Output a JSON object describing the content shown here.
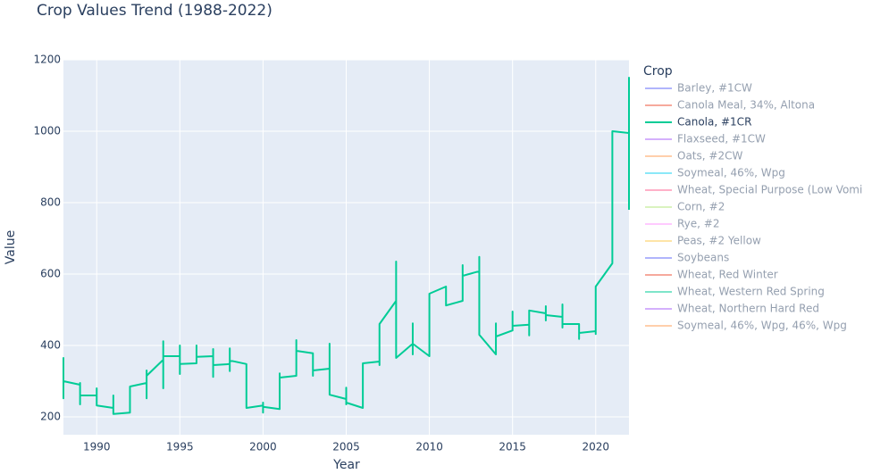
{
  "chart_data": {
    "type": "line",
    "title": "Crop Values Trend (1988-2022)",
    "x_label": "Year",
    "y_label": "Value",
    "legend_title": "Crop",
    "x": [
      1988,
      1988,
      1988,
      1989,
      1989,
      1989,
      1989,
      1990,
      1990,
      1990,
      1991,
      1991,
      1991,
      1992,
      1992,
      1993,
      1993,
      1993,
      1993,
      1994,
      1994,
      1994,
      1994,
      1995,
      1995,
      1995,
      1995,
      1996,
      1996,
      1996,
      1996,
      1997,
      1997,
      1997,
      1997,
      1998,
      1998,
      1998,
      1998,
      1999,
      1999,
      2000,
      2000,
      2000,
      2000,
      2001,
      2001,
      2001,
      2002,
      2002,
      2002,
      2003,
      2003,
      2003,
      2003,
      2004,
      2004,
      2004,
      2005,
      2005,
      2005,
      2005,
      2006,
      2006,
      2007,
      2007,
      2007,
      2008,
      2008,
      2008,
      2009,
      2009,
      2009,
      2009,
      2010,
      2010,
      2011,
      2011,
      2011,
      2012,
      2012,
      2012,
      2012,
      2013,
      2013,
      2013,
      2014,
      2014,
      2014,
      2015,
      2015,
      2015,
      2015,
      2016,
      2016,
      2016,
      2017,
      2017,
      2017,
      2017,
      2018,
      2018,
      2018,
      2018,
      2019,
      2019,
      2019,
      2020,
      2020,
      2020,
      2021,
      2021,
      2022,
      2022,
      2022
    ],
    "series": [
      {
        "name": "Barley, #1CW",
        "color": "#636efa",
        "visible": false
      },
      {
        "name": "Canola Meal, 34%, Altona",
        "color": "#EF553B",
        "visible": false
      },
      {
        "name": "Canola, #1CR",
        "color": "#00cc96",
        "visible": true,
        "values": [
          367,
          252,
          300,
          290,
          295,
          235,
          260,
          260,
          280,
          232,
          225,
          260,
          208,
          212,
          285,
          295,
          330,
          252,
          315,
          360,
          412,
          280,
          370,
          370,
          400,
          320,
          348,
          350,
          400,
          360,
          368,
          370,
          390,
          312,
          345,
          348,
          392,
          328,
          358,
          348,
          225,
          232,
          240,
          212,
          228,
          222,
          322,
          310,
          315,
          415,
          385,
          378,
          330,
          315,
          330,
          335,
          405,
          262,
          250,
          282,
          235,
          240,
          225,
          350,
          355,
          345,
          460,
          525,
          635,
          365,
          405,
          462,
          375,
          405,
          370,
          545,
          565,
          512,
          512,
          525,
          625,
          595,
          595,
          608,
          648,
          430,
          375,
          462,
          425,
          442,
          495,
          455,
          455,
          458,
          428,
          498,
          490,
          510,
          470,
          485,
          480,
          515,
          450,
          460,
          460,
          418,
          435,
          440,
          432,
          565,
          630,
          1000,
          995,
          1150,
          780
        ]
      },
      {
        "name": "Flaxseed, #1CW",
        "color": "#ab63fa",
        "visible": false
      },
      {
        "name": "Oats, #2CW",
        "color": "#FFA15A",
        "visible": false
      },
      {
        "name": "Soymeal, 46%, Wpg",
        "color": "#19d3f3",
        "visible": false
      },
      {
        "name": "Wheat, Special Purpose (Low Vomi",
        "color": "#FF6692",
        "visible": false
      },
      {
        "name": "Corn, #2",
        "color": "#B6E880",
        "visible": false
      },
      {
        "name": "Rye, #2",
        "color": "#FF97FF",
        "visible": false
      },
      {
        "name": "Peas, #2 Yellow",
        "color": "#FECB52",
        "visible": false
      },
      {
        "name": "Soybeans",
        "color": "#636efa",
        "visible": false
      },
      {
        "name": "Wheat, Red Winter",
        "color": "#EF553B",
        "visible": false
      },
      {
        "name": "Wheat, Western Red Spring",
        "color": "#00cc96",
        "visible": false
      },
      {
        "name": "Wheat, Northern Hard Red",
        "color": "#ab63fa",
        "visible": false
      },
      {
        "name": "Soymeal, 46%, Wpg, 46%, Wpg",
        "color": "#FFA15A",
        "visible": false
      }
    ],
    "xlim": [
      1988,
      2022
    ],
    "xticks": [
      1990,
      1995,
      2000,
      2005,
      2010,
      2015,
      2020
    ],
    "ylim": [
      150,
      1200
    ],
    "yticks": [
      200,
      400,
      600,
      800,
      1000,
      1200
    ],
    "grid": true
  }
}
